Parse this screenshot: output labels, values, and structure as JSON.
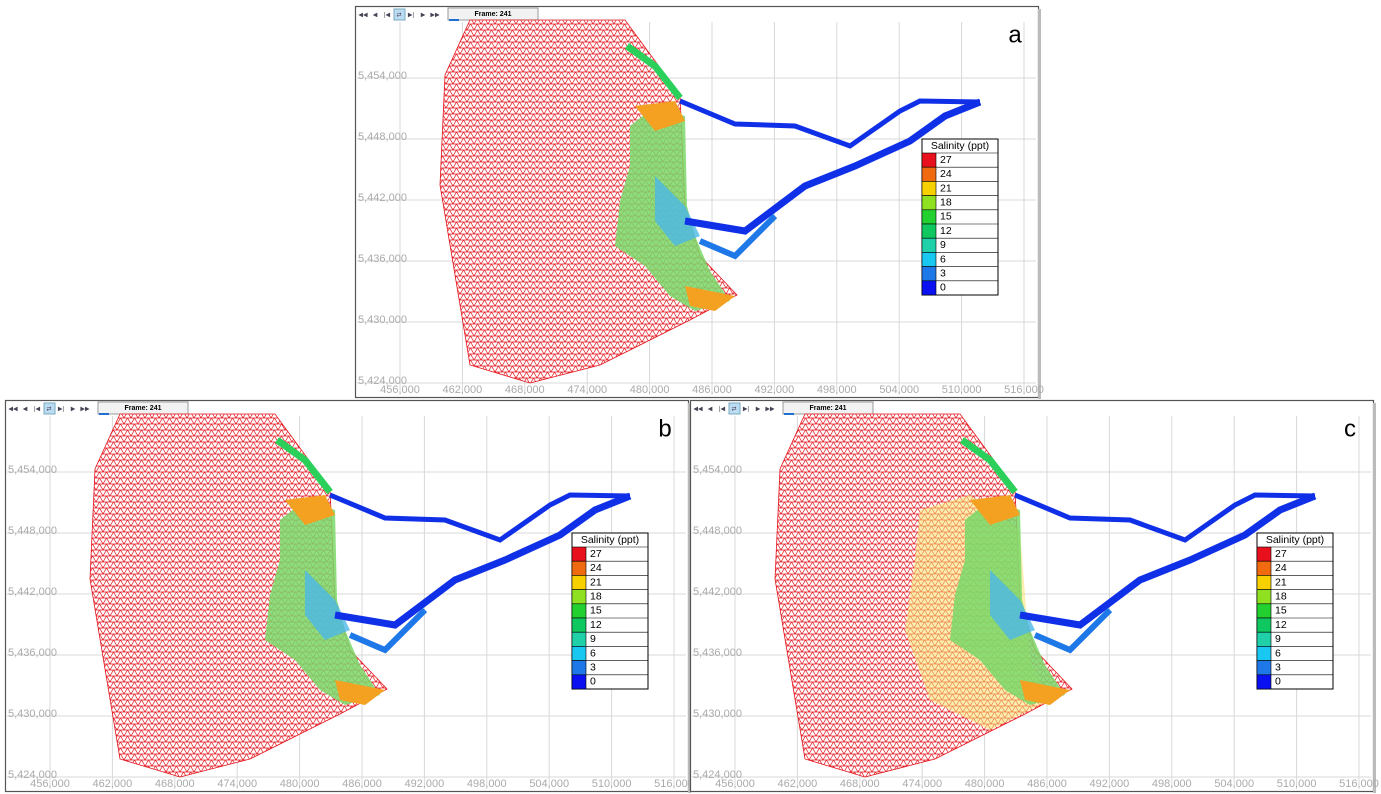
{
  "panels": [
    {
      "label": "a",
      "frame": "Frame: 241"
    },
    {
      "label": "b",
      "frame": "Frame: 241"
    },
    {
      "label": "c",
      "frame": "Frame: 241"
    }
  ],
  "axes": {
    "x_labels": [
      "456,000",
      "462,000",
      "468,000",
      "474,000",
      "480,000",
      "486,000",
      "492,000",
      "498,000",
      "504,000",
      "510,000",
      "516,000"
    ],
    "y_labels": [
      "5,454,000",
      "5,448,000",
      "5,442,000",
      "5,436,000",
      "5,430,000",
      "5,424,000"
    ]
  },
  "legend": {
    "title": "Salinity (ppt)",
    "values": [
      27,
      24,
      21,
      18,
      15,
      12,
      9,
      6,
      3,
      0
    ],
    "colors": [
      "#e8101c",
      "#f06a10",
      "#f7d000",
      "#8ee020",
      "#22d030",
      "#10c860",
      "#20d0a8",
      "#18c8f0",
      "#1e78e8",
      "#0a10f0"
    ]
  }
}
